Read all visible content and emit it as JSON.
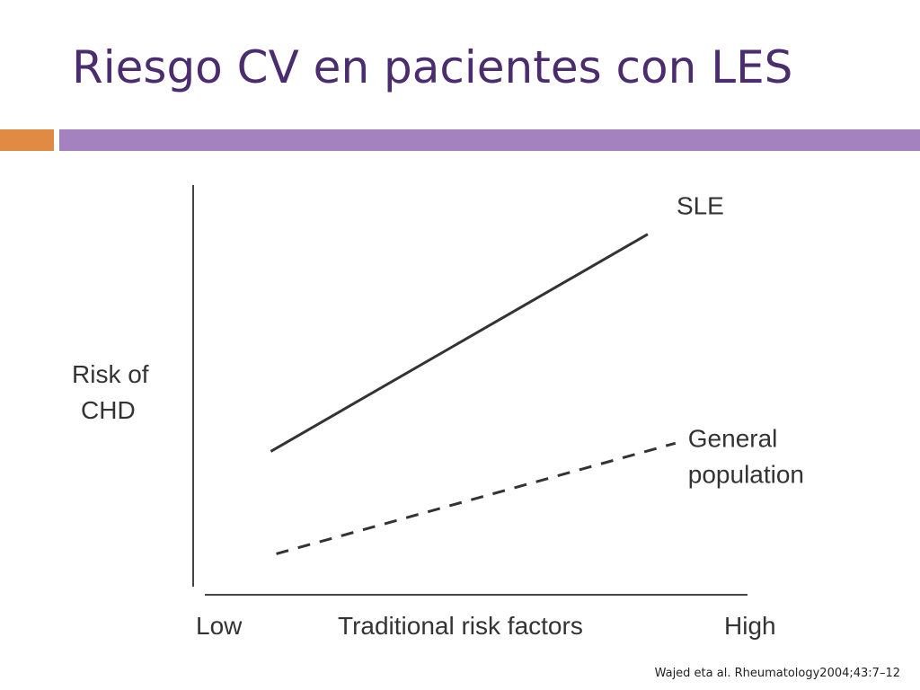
{
  "slide": {
    "title": "Riesgo CV en pacientes con LES",
    "citation": "Wajed eta al. Rheumatology2004;43:7–12"
  },
  "colors": {
    "title": "#4a2c6f",
    "rule_orange": "#e08a44",
    "rule_purple": "#a482c0",
    "ink": "#333333"
  },
  "chart_data": {
    "type": "line",
    "title": "",
    "xlabel": "Traditional risk factors",
    "ylabel": [
      "Risk of",
      "CHD"
    ],
    "x_tick_labels": [
      "Low",
      "High"
    ],
    "xlim": [
      0,
      1
    ],
    "ylim": [
      0,
      1
    ],
    "grid": false,
    "legend": "direct labels at line ends",
    "series": [
      {
        "name": "SLE",
        "label_lines": [
          "SLE"
        ],
        "style": "solid",
        "x": [
          0.14,
          0.82
        ],
        "y": [
          0.35,
          0.88
        ]
      },
      {
        "name": "General population",
        "label_lines": [
          "General",
          "population"
        ],
        "style": "dashed",
        "x": [
          0.15,
          0.87
        ],
        "y": [
          0.1,
          0.37
        ]
      }
    ]
  }
}
